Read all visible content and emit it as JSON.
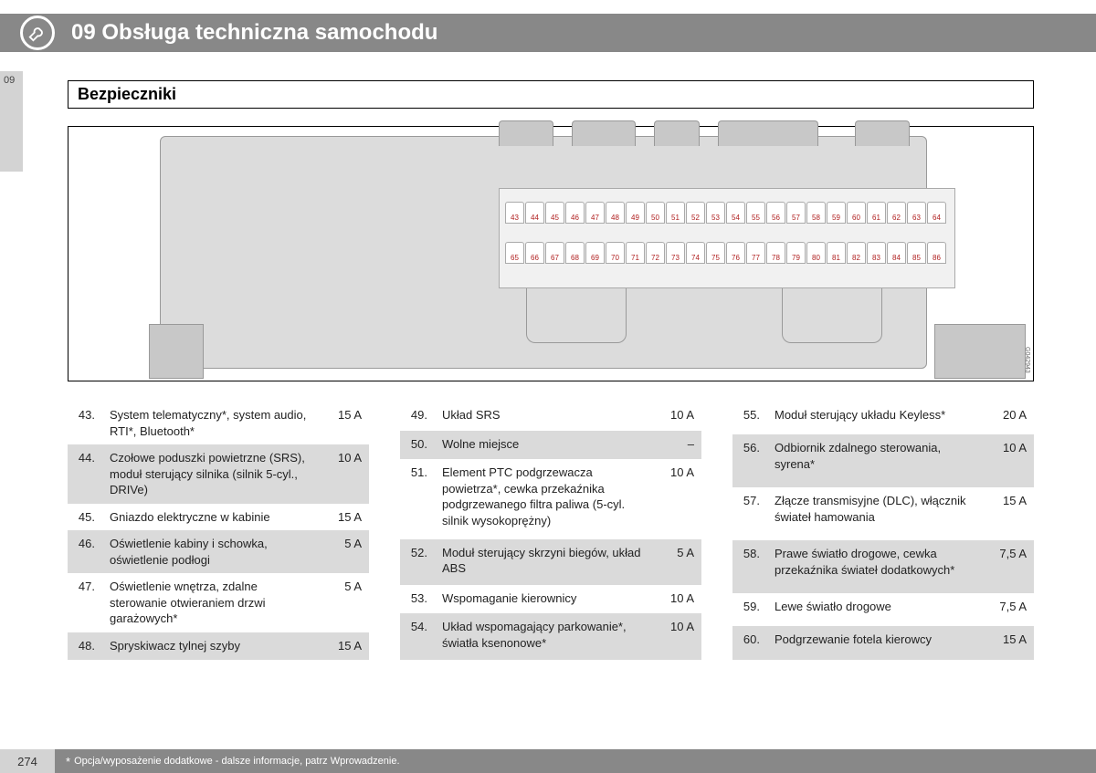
{
  "header": {
    "chapter_title": "09 Obsługa techniczna samochodu"
  },
  "side": {
    "chapter_num": "09"
  },
  "section": {
    "title": "Bezpieczniki"
  },
  "diagram": {
    "ref": "G042943",
    "row_top": [
      "43",
      "44",
      "45",
      "46",
      "47",
      "48",
      "49",
      "50",
      "51",
      "52",
      "53",
      "54",
      "55",
      "56",
      "57",
      "58",
      "59",
      "60",
      "61",
      "62",
      "63",
      "64"
    ],
    "row_bot": [
      "65",
      "66",
      "67",
      "68",
      "69",
      "70",
      "71",
      "72",
      "73",
      "74",
      "75",
      "76",
      "77",
      "78",
      "79",
      "80",
      "81",
      "82",
      "83",
      "84",
      "85",
      "86"
    ]
  },
  "tables": {
    "col1": [
      {
        "num": "43.",
        "desc": "System telematyczny*, system audio, RTI*, Bluetooth*",
        "amp": "15 A",
        "shade": false
      },
      {
        "num": "44.",
        "desc": "Czołowe poduszki powietrzne (SRS), moduł sterujący silnika (silnik 5-cyl., DRIVe)",
        "amp": "10 A",
        "shade": true
      },
      {
        "num": "45.",
        "desc": "Gniazdo elektryczne w kabinie",
        "amp": "15 A",
        "shade": false
      },
      {
        "num": "46.",
        "desc": "Oświetlenie kabiny i schowka, oświetlenie podłogi",
        "amp": "5 A",
        "shade": true
      },
      {
        "num": "47.",
        "desc": "Oświetlenie wnętrza, zdalne sterowanie otwieraniem drzwi garażowych*",
        "amp": "5 A",
        "shade": false
      },
      {
        "num": "48.",
        "desc": "Spryskiwacz tylnej szyby",
        "amp": "15 A",
        "shade": true
      }
    ],
    "col2": [
      {
        "num": "49.",
        "desc": "Układ SRS",
        "amp": "10 A",
        "shade": false
      },
      {
        "num": "50.",
        "desc": "Wolne miejsce",
        "amp": "–",
        "shade": true
      },
      {
        "num": "51.",
        "desc": "Element PTC podgrzewacza powietrza*, cewka przekaźnika podgrzewanego filtra paliwa (5-cyl. silnik wysokoprężny)",
        "amp": "10 A",
        "shade": false
      },
      {
        "num": "52.",
        "desc": "Moduł sterujący skrzyni biegów, układ ABS",
        "amp": "5 A",
        "shade": true
      },
      {
        "num": "53.",
        "desc": "Wspomaganie kierownicy",
        "amp": "10 A",
        "shade": false
      },
      {
        "num": "54.",
        "desc": "Układ wspomagający parkowanie*, światła ksenonowe*",
        "amp": "10 A",
        "shade": true
      }
    ],
    "col3": [
      {
        "num": "55.",
        "desc": "Moduł sterujący układu Keyless*",
        "amp": "20 A",
        "shade": false
      },
      {
        "num": "56.",
        "desc": "Odbiornik zdalnego sterowania, syrena*",
        "amp": "10 A",
        "shade": true
      },
      {
        "num": "57.",
        "desc": "Złącze transmisyjne (DLC), włącznik świateł hamowania",
        "amp": "15 A",
        "shade": false
      },
      {
        "num": "58.",
        "desc": "Prawe światło drogowe, cewka przekaźnika świateł dodatkowych*",
        "amp": "7,5 A",
        "shade": true
      },
      {
        "num": "59.",
        "desc": "Lewe światło drogowe",
        "amp": "7,5 A",
        "shade": false
      },
      {
        "num": "60.",
        "desc": "Podgrzewanie fotela kierowcy",
        "amp": "15 A",
        "shade": true
      }
    ]
  },
  "footer": {
    "page": "274",
    "note": "Opcja/wyposażenie dodatkowe - dalsze informacje, patrz Wprowadzenie."
  },
  "style": {
    "header_bg": "#888888",
    "shade_bg": "#dadada",
    "fuse_label_color": "#b02020"
  }
}
